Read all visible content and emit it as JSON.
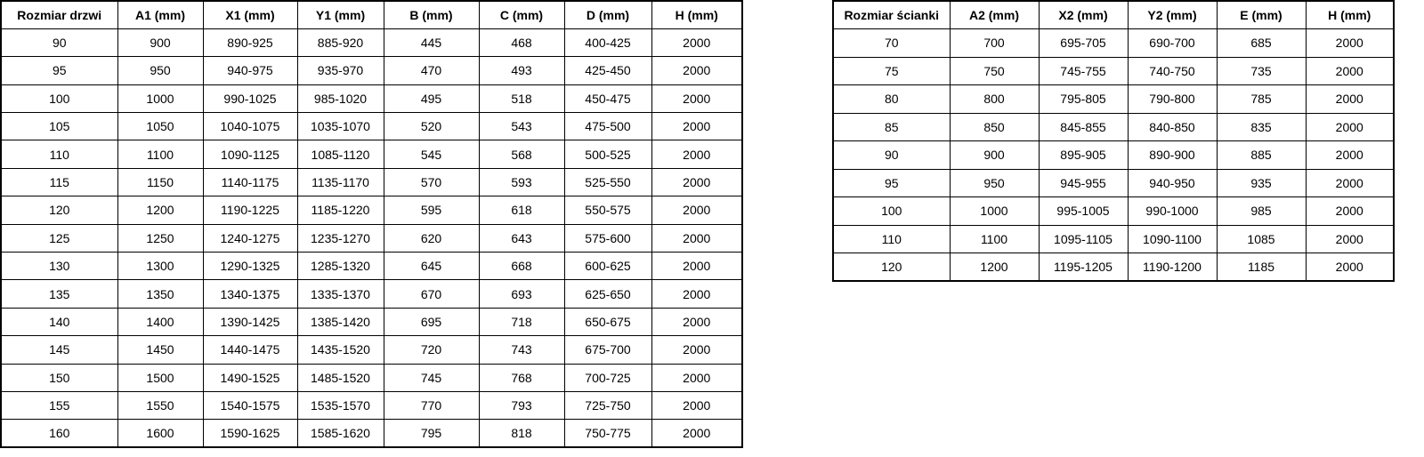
{
  "left_table": {
    "name": "Rozmiar drzwi",
    "headers": [
      "Rozmiar drzwi",
      "A1 (mm)",
      "X1 (mm)",
      "Y1 (mm)",
      "B (mm)",
      "C (mm)",
      "D (mm)",
      "H (mm)"
    ],
    "rows": [
      [
        "90",
        "900",
        "890-925",
        "885-920",
        "445",
        "468",
        "400-425",
        "2000"
      ],
      [
        "95",
        "950",
        "940-975",
        "935-970",
        "470",
        "493",
        "425-450",
        "2000"
      ],
      [
        "100",
        "1000",
        "990-1025",
        "985-1020",
        "495",
        "518",
        "450-475",
        "2000"
      ],
      [
        "105",
        "1050",
        "1040-1075",
        "1035-1070",
        "520",
        "543",
        "475-500",
        "2000"
      ],
      [
        "110",
        "1100",
        "1090-1125",
        "1085-1120",
        "545",
        "568",
        "500-525",
        "2000"
      ],
      [
        "115",
        "1150",
        "1140-1175",
        "1135-1170",
        "570",
        "593",
        "525-550",
        "2000"
      ],
      [
        "120",
        "1200",
        "1190-1225",
        "1185-1220",
        "595",
        "618",
        "550-575",
        "2000"
      ],
      [
        "125",
        "1250",
        "1240-1275",
        "1235-1270",
        "620",
        "643",
        "575-600",
        "2000"
      ],
      [
        "130",
        "1300",
        "1290-1325",
        "1285-1320",
        "645",
        "668",
        "600-625",
        "2000"
      ],
      [
        "135",
        "1350",
        "1340-1375",
        "1335-1370",
        "670",
        "693",
        "625-650",
        "2000"
      ],
      [
        "140",
        "1400",
        "1390-1425",
        "1385-1420",
        "695",
        "718",
        "650-675",
        "2000"
      ],
      [
        "145",
        "1450",
        "1440-1475",
        "1435-1520",
        "720",
        "743",
        "675-700",
        "2000"
      ],
      [
        "150",
        "1500",
        "1490-1525",
        "1485-1520",
        "745",
        "768",
        "700-725",
        "2000"
      ],
      [
        "155",
        "1550",
        "1540-1575",
        "1535-1570",
        "770",
        "793",
        "725-750",
        "2000"
      ],
      [
        "160",
        "1600",
        "1590-1625",
        "1585-1620",
        "795",
        "818",
        "750-775",
        "2000"
      ]
    ]
  },
  "right_table": {
    "name": "Rozmiar ścianki",
    "headers": [
      "Rozmiar ścianki",
      "A2 (mm)",
      "X2 (mm)",
      "Y2 (mm)",
      "E (mm)",
      "H (mm)"
    ],
    "rows": [
      [
        "70",
        "700",
        "695-705",
        "690-700",
        "685",
        "2000"
      ],
      [
        "75",
        "750",
        "745-755",
        "740-750",
        "735",
        "2000"
      ],
      [
        "80",
        "800",
        "795-805",
        "790-800",
        "785",
        "2000"
      ],
      [
        "85",
        "850",
        "845-855",
        "840-850",
        "835",
        "2000"
      ],
      [
        "90",
        "900",
        "895-905",
        "890-900",
        "885",
        "2000"
      ],
      [
        "95",
        "950",
        "945-955",
        "940-950",
        "935",
        "2000"
      ],
      [
        "100",
        "1000",
        "995-1005",
        "990-1000",
        "985",
        "2000"
      ],
      [
        "110",
        "1100",
        "1095-1105",
        "1090-1100",
        "1085",
        "2000"
      ],
      [
        "120",
        "1200",
        "1195-1205",
        "1190-1200",
        "1185",
        "2000"
      ]
    ]
  },
  "colors": {
    "border": "#000000",
    "text": "#000000",
    "background": "#ffffff"
  }
}
